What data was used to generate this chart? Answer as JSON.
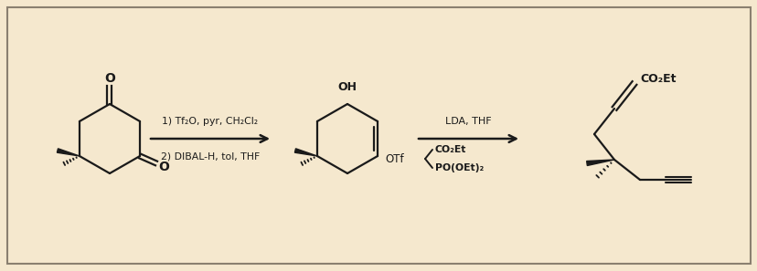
{
  "background_color": "#f5e8ce",
  "border_color": "#8a8070",
  "line_color": "#1a1a1a",
  "text_color": "#1a1a1a",
  "fig_width": 8.29,
  "fig_height": 2.97,
  "dpi": 100,
  "reagent1_line1": "1) Tf₂O, pyr, CH₂Cl₂",
  "reagent1_line2": "2) DIBAL-H, tol, THF",
  "reagent2_line1": "LDA, THF",
  "reagent2_line2a": "CO₂Et",
  "reagent2_line2b": "PO(OEt)₂",
  "label_OH": "OH",
  "label_OTf": "OTf",
  "label_CO2Et": "CO₂Et"
}
